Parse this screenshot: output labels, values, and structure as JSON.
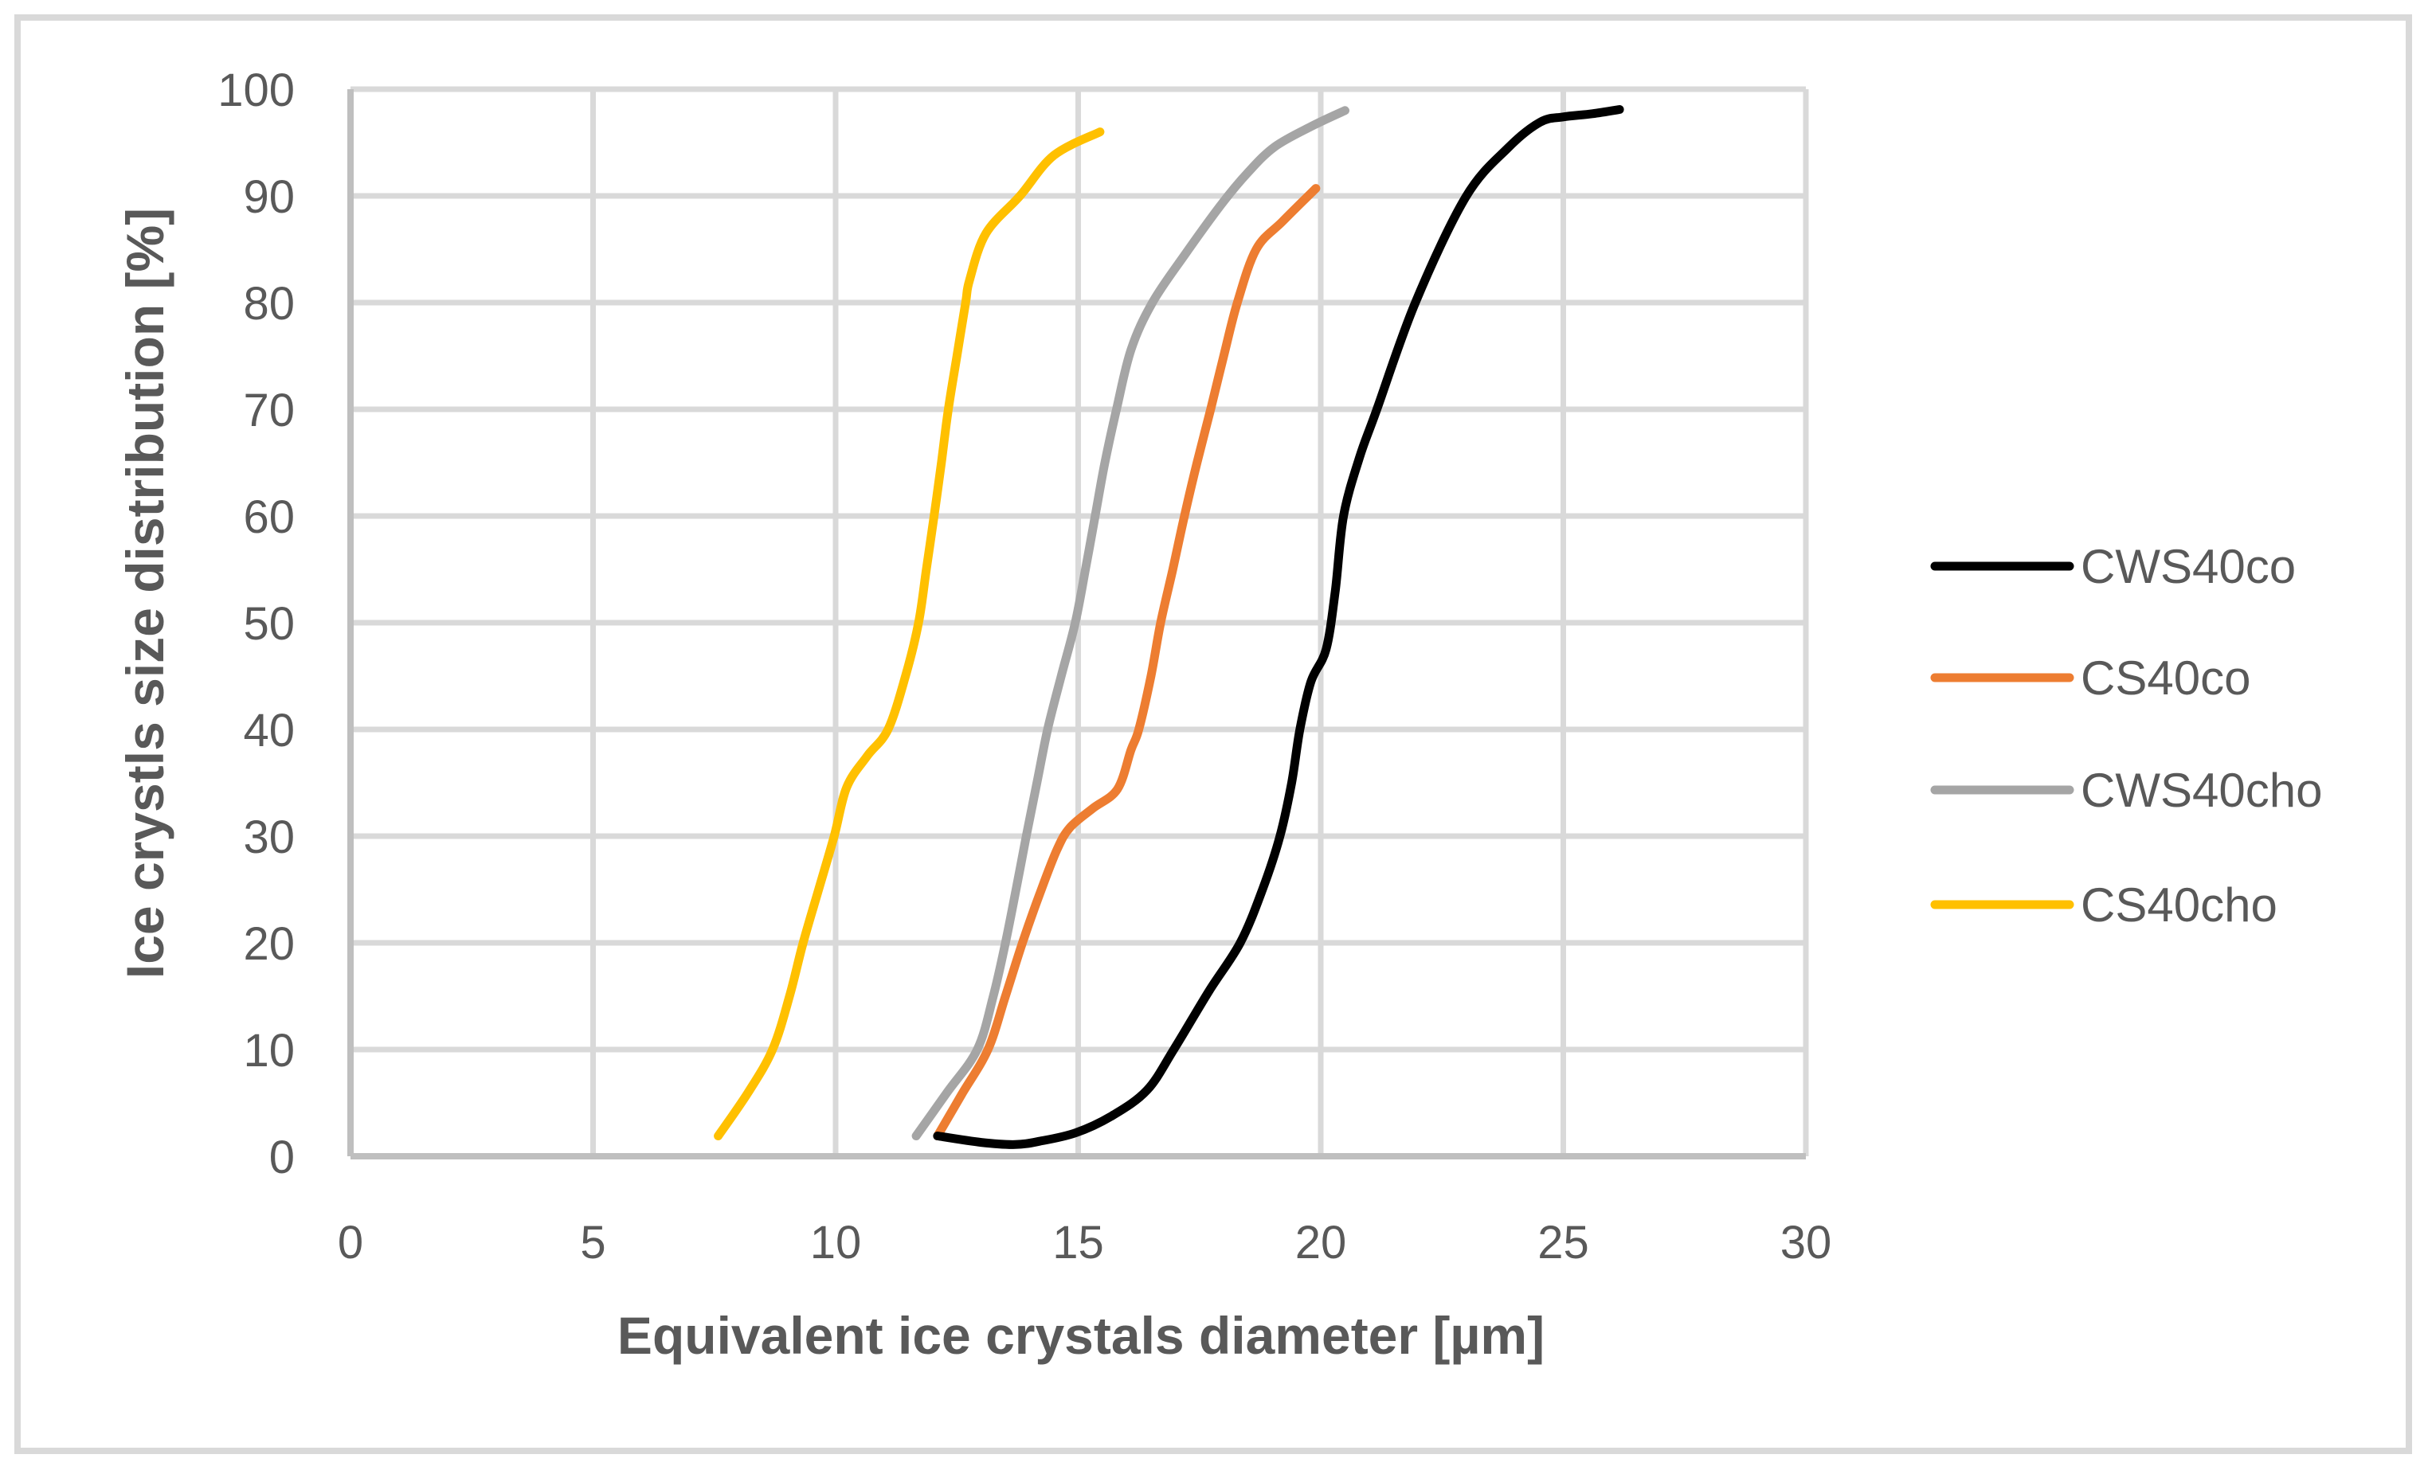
{
  "chart_data": {
    "type": "line",
    "title": "",
    "xlabel": "Equivalent ice crystals diameter [µm]",
    "ylabel": "Ice crystls size distribution [%]",
    "xlim": [
      0,
      30
    ],
    "ylim": [
      0,
      100
    ],
    "xticks": [
      0,
      5,
      10,
      15,
      20,
      25,
      30
    ],
    "yticks": [
      0,
      10,
      20,
      30,
      40,
      50,
      60,
      70,
      80,
      90,
      100
    ],
    "grid": true,
    "legend_position": "right",
    "series": [
      {
        "name": "CWS40co",
        "color": "#000000",
        "points": [
          [
            12.1,
            1.9
          ],
          [
            13.0,
            1.3
          ],
          [
            13.7,
            1.1
          ],
          [
            14.2,
            1.4
          ],
          [
            14.95,
            2.2
          ],
          [
            15.7,
            3.8
          ],
          [
            16.42,
            6.2
          ],
          [
            16.97,
            10
          ],
          [
            17.7,
            15.5
          ],
          [
            18.34,
            20
          ],
          [
            18.8,
            25
          ],
          [
            19.16,
            30
          ],
          [
            19.4,
            35
          ],
          [
            19.57,
            40
          ],
          [
            19.8,
            44.5
          ],
          [
            20.11,
            47.5
          ],
          [
            20.3,
            53
          ],
          [
            20.47,
            60
          ],
          [
            20.8,
            65.5
          ],
          [
            21.15,
            69.9
          ],
          [
            21.95,
            80
          ],
          [
            22.99,
            89.9
          ],
          [
            23.86,
            94.5
          ],
          [
            24.52,
            96.9
          ],
          [
            25.0,
            97.4
          ],
          [
            25.6,
            97.7
          ],
          [
            26.16,
            98.1
          ]
        ]
      },
      {
        "name": "CS40co",
        "color": "#ED7D31",
        "points": [
          [
            12.1,
            1.9
          ],
          [
            12.6,
            5.8
          ],
          [
            13.14,
            10
          ],
          [
            13.5,
            15
          ],
          [
            13.85,
            20
          ],
          [
            14.2,
            24.5
          ],
          [
            14.56,
            28.7
          ],
          [
            14.83,
            30.8
          ],
          [
            15.3,
            32.6
          ],
          [
            15.81,
            34.4
          ],
          [
            16.09,
            38.1
          ],
          [
            16.25,
            40
          ],
          [
            16.5,
            45
          ],
          [
            16.7,
            50
          ],
          [
            16.95,
            55
          ],
          [
            17.19,
            60
          ],
          [
            17.45,
            65
          ],
          [
            17.73,
            70
          ],
          [
            18.0,
            75
          ],
          [
            18.28,
            80
          ],
          [
            18.67,
            85
          ],
          [
            19.21,
            87.6
          ],
          [
            19.9,
            90.7
          ]
        ]
      },
      {
        "name": "CWS40cho",
        "color": "#A5A5A5",
        "points": [
          [
            11.66,
            1.9
          ],
          [
            12.3,
            6
          ],
          [
            12.92,
            10
          ],
          [
            13.25,
            15
          ],
          [
            13.5,
            20
          ],
          [
            13.72,
            25
          ],
          [
            13.93,
            30
          ],
          [
            14.15,
            35
          ],
          [
            14.37,
            40
          ],
          [
            14.65,
            45
          ],
          [
            14.94,
            50
          ],
          [
            15.15,
            55
          ],
          [
            15.35,
            60
          ],
          [
            15.55,
            65
          ],
          [
            15.79,
            70
          ],
          [
            16.09,
            75.6
          ],
          [
            16.53,
            80
          ],
          [
            17.2,
            84.5
          ],
          [
            17.95,
            89.2
          ],
          [
            18.5,
            92.2
          ],
          [
            19.05,
            94.6
          ],
          [
            19.8,
            96.5
          ],
          [
            20.5,
            98.0
          ]
        ]
      },
      {
        "name": "CS40cho",
        "color": "#FFC000",
        "points": [
          [
            7.58,
            1.9
          ],
          [
            8.2,
            6
          ],
          [
            8.7,
            10
          ],
          [
            9.05,
            15
          ],
          [
            9.33,
            20
          ],
          [
            9.65,
            25
          ],
          [
            9.97,
            30
          ],
          [
            10.23,
            34.6
          ],
          [
            10.65,
            37.5
          ],
          [
            11.08,
            40
          ],
          [
            11.44,
            45
          ],
          [
            11.71,
            50
          ],
          [
            11.87,
            55
          ],
          [
            12.03,
            60
          ],
          [
            12.18,
            65
          ],
          [
            12.32,
            69.9
          ],
          [
            12.5,
            75
          ],
          [
            12.68,
            80
          ],
          [
            12.76,
            82.1
          ],
          [
            13.1,
            86.5
          ],
          [
            13.8,
            90
          ],
          [
            14.5,
            93.8
          ],
          [
            15.45,
            96.0
          ]
        ]
      }
    ]
  },
  "legend": {
    "items": [
      {
        "label": "CWS40co",
        "color": "#000000"
      },
      {
        "label": "CS40co",
        "color": "#ED7D31"
      },
      {
        "label": "CWS40cho",
        "color": "#A5A5A5"
      },
      {
        "label": "CS40cho",
        "color": "#FFC000"
      }
    ]
  },
  "axes": {
    "x_title": "Equivalent ice crystals diameter [µm]",
    "y_title": "Ice crystls size distribution [%]",
    "x_tick_labels": [
      "0",
      "5",
      "10",
      "15",
      "20",
      "25",
      "30"
    ],
    "y_tick_labels": [
      "0",
      "10",
      "20",
      "30",
      "40",
      "50",
      "60",
      "70",
      "80",
      "90",
      "100"
    ]
  },
  "style": {
    "gridline_color": "#D9D9D9",
    "axis_color": "#BFBFBF",
    "text_color": "#595959",
    "frame_color": "#D9D9D9"
  }
}
